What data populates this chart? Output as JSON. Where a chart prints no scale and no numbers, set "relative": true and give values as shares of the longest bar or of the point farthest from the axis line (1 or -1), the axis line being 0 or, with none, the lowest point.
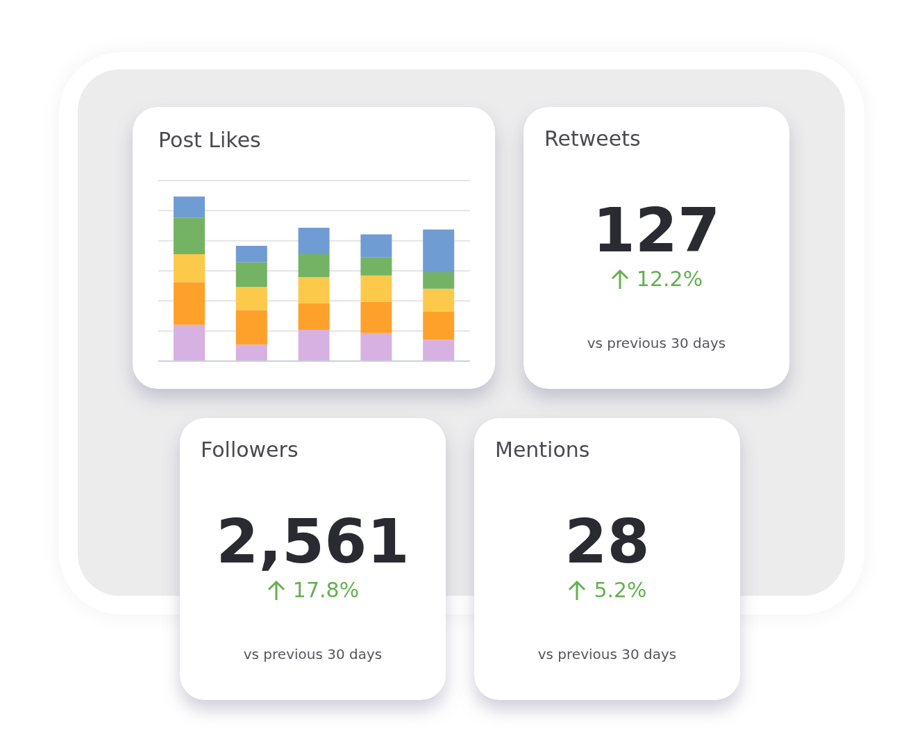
{
  "chart_data": [
    {
      "type": "bar",
      "title": "Post Likes",
      "relative": true,
      "stacked": true,
      "grid": true,
      "categories": [
        null,
        null,
        null,
        null,
        null
      ],
      "series": [
        {
          "color": "#d7b1e1",
          "values": [
            0.22,
            0.1,
            0.19,
            0.17,
            0.13
          ]
        },
        {
          "color": "#fda12b",
          "values": [
            0.26,
            0.21,
            0.16,
            0.19,
            0.17
          ]
        },
        {
          "color": "#fdc94b",
          "values": [
            0.17,
            0.14,
            0.16,
            0.16,
            0.14
          ]
        },
        {
          "color": "#74b363",
          "values": [
            0.22,
            0.15,
            0.14,
            0.11,
            0.1
          ]
        },
        {
          "color": "#709cd4",
          "values": [
            0.13,
            0.1,
            0.16,
            0.14,
            0.26
          ]
        }
      ]
    },
    {
      "type": "other",
      "title": "Retweets",
      "annotations": [
        "127",
        "12.2%",
        "vs previous 30 days"
      ]
    },
    {
      "type": "other",
      "title": "Followers",
      "annotations": [
        "2,561",
        "17.8%",
        "vs previous 30 days"
      ]
    },
    {
      "type": "other",
      "title": "Mentions",
      "annotations": [
        "28",
        "5.2%",
        "vs previous 30 days"
      ]
    }
  ]
}
